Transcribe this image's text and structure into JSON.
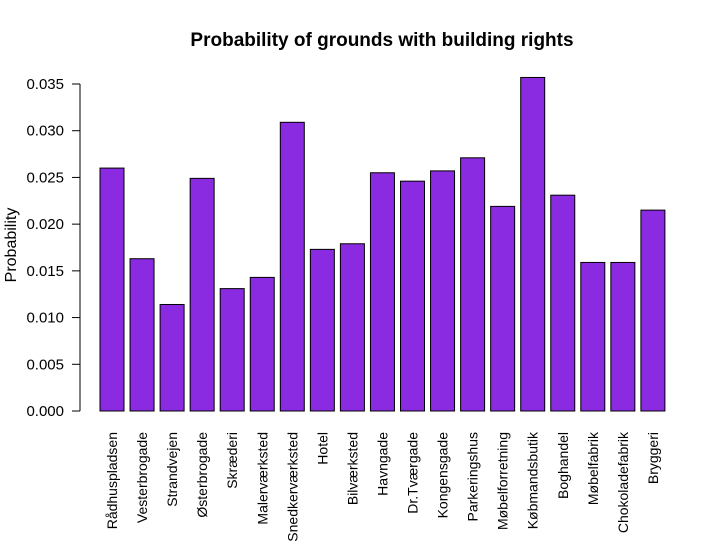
{
  "chart_data": {
    "type": "bar",
    "title": "Probability of grounds with building rights",
    "xlabel": "",
    "ylabel": "Probability",
    "ylim": [
      0,
      0.035
    ],
    "yticks": [
      "0.000",
      "0.005",
      "0.010",
      "0.015",
      "0.020",
      "0.025",
      "0.030",
      "0.035"
    ],
    "bar_color": "#8A2BE2",
    "grid": false,
    "legend": "none",
    "categories": [
      "Rådhuspladsen",
      "Vesterbrogade",
      "Strandvejen",
      "Østerbrogade",
      "Skræderi",
      "Malerværksted",
      "Snedkerværksted",
      "Hotel",
      "Bilværksted",
      "Havngade",
      "Dr.Tværgade",
      "Kongensgade",
      "Parkeringshus",
      "Møbelforretning",
      "Købmandsbutik",
      "Boghandel",
      "Møbelfabrik",
      "Chokoladefabrik",
      "Bryggeri"
    ],
    "values": [
      0.026,
      0.0163,
      0.0114,
      0.0249,
      0.0131,
      0.0143,
      0.0309,
      0.0173,
      0.0179,
      0.0255,
      0.0246,
      0.0257,
      0.0271,
      0.0219,
      0.0357,
      0.0231,
      0.0159,
      0.0159,
      0.0215
    ]
  }
}
